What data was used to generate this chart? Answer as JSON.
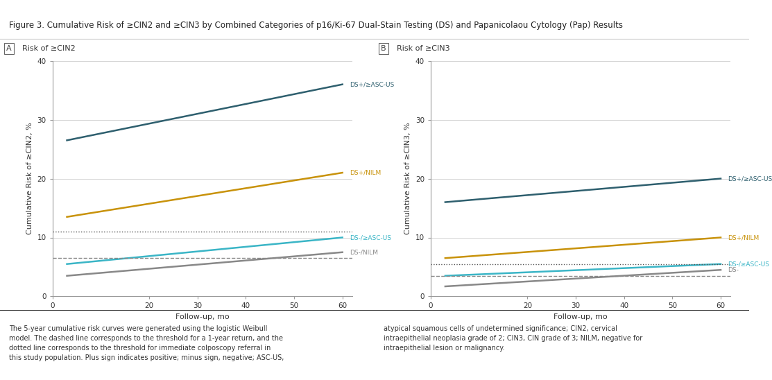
{
  "title": "Figure 3. Cumulative Risk of ≥CIN2 and ≥CIN3 by Combined Categories of p16/Ki-67 Dual-Stain Testing (DS) and Papanicolaou Cytology (Pap) Results",
  "panel_a_label": "A  Risk of ≥CIN2",
  "panel_b_label": "B  Risk of ≥CIN3",
  "x": [
    3,
    60
  ],
  "panel_a": {
    "ylabel": "Cumulative Risk of ≥CIN2, %",
    "xlabel": "Follow-up, mo",
    "ylim": [
      0,
      40
    ],
    "yticks": [
      0,
      10,
      20,
      30,
      40
    ],
    "xticks": [
      0,
      20,
      30,
      40,
      50,
      60
    ],
    "dotted_line": 11.0,
    "dashed_line": 6.5,
    "series": [
      {
        "label": "DS+/≥ASC-US",
        "y_start": 26.5,
        "y_end": 36.0,
        "color": "#2e5f6e",
        "lw": 1.8,
        "ls": "-"
      },
      {
        "label": "DS+/NILM",
        "y_start": 13.5,
        "y_end": 21.0,
        "color": "#c8920a",
        "lw": 1.8,
        "ls": "-"
      },
      {
        "label": "DS-/≥ASC-US",
        "y_start": 5.5,
        "y_end": 10.0,
        "color": "#3ab5c6",
        "lw": 1.8,
        "ls": "-"
      },
      {
        "label": "DS-/NILM",
        "y_start": 3.5,
        "y_end": 7.5,
        "color": "#888888",
        "lw": 1.8,
        "ls": "-"
      }
    ]
  },
  "panel_b": {
    "ylabel": "Cumulative Risk of ≥CIN3, %",
    "xlabel": "Follow-up, mo",
    "ylim": [
      0,
      40
    ],
    "yticks": [
      0,
      10,
      20,
      30,
      40
    ],
    "xticks": [
      0,
      20,
      30,
      40,
      50,
      60
    ],
    "dotted_line": 5.5,
    "dashed_line": 3.5,
    "series": [
      {
        "label": "DS+/≥ASC-US",
        "y_start": 16.0,
        "y_end": 20.0,
        "color": "#2e5f6e",
        "lw": 1.8,
        "ls": "-"
      },
      {
        "label": "DS+/NILM",
        "y_start": 6.5,
        "y_end": 10.0,
        "color": "#c8920a",
        "lw": 1.8,
        "ls": "-"
      },
      {
        "label": "DS-/≥ASC-US",
        "y_start": 3.5,
        "y_end": 5.5,
        "color": "#3ab5c6",
        "lw": 1.8,
        "ls": "-"
      },
      {
        "label": "DS-",
        "y_start": 1.7,
        "y_end": 4.5,
        "color": "#888888",
        "lw": 1.8,
        "ls": "-"
      }
    ]
  },
  "footer_left": "The 5-year cumulative risk curves were generated using the logistic Weibull\nmodel. The dashed line corresponds to the threshold for a 1-year return, and the\ndotted line corresponds to the threshold for immediate colposcopy referral in\nthis study population. Plus sign indicates positive; minus sign, negative; ASC-US,",
  "footer_right": "atypical squamous cells of undetermined significance; CIN2, cervical\nintraepithelial neoplasia grade of 2; CIN3, CIN grade of 3; NILM, negative for\nintraepithelial lesion or malignancy.",
  "bg_color": "#ffffff",
  "header_bar_color": "#3d8a6e",
  "title_fontsize": 8.5,
  "axis_fontsize": 8,
  "label_fontsize": 7.5,
  "footer_fontsize": 7
}
